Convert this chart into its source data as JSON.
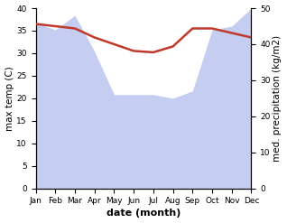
{
  "months": [
    "Jan",
    "Feb",
    "Mar",
    "Apr",
    "May",
    "Jun",
    "Jul",
    "Aug",
    "Sep",
    "Oct",
    "Nov",
    "Dec"
  ],
  "x": [
    0,
    1,
    2,
    3,
    4,
    5,
    6,
    7,
    8,
    9,
    10,
    11
  ],
  "temp": [
    36.5,
    36.0,
    35.5,
    33.5,
    32.0,
    30.5,
    30.2,
    31.5,
    35.5,
    35.5,
    34.5,
    33.5
  ],
  "precip_right": [
    46,
    44,
    48,
    38,
    26,
    26,
    26,
    25,
    27,
    44,
    45,
    50
  ],
  "temp_color": "#c0392b",
  "precip_fill_color": "#c5cdf0",
  "ylim_left": [
    0,
    40
  ],
  "ylim_right": [
    0,
    50
  ],
  "ylabel_left": "max temp (C)",
  "ylabel_right": "med. precipitation (kg/m2)",
  "xlabel": "date (month)",
  "label_fontsize": 7.5,
  "tick_fontsize": 6.5
}
